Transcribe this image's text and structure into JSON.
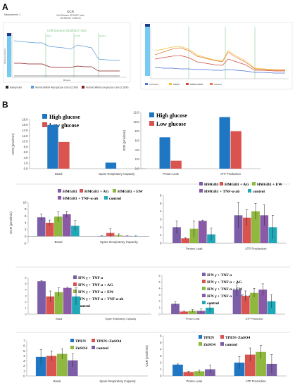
{
  "figure": {
    "label_a": "A",
    "label_b": "B"
  },
  "panel_a": {
    "header_measurement": "Measurement: 1",
    "header_title": "OCR",
    "header_sub1": "Cell Science 20190227 mito",
    "header_sub2": "2019/02/27 13:55:20",
    "inner_title": "Cell Science 20190227 mito",
    "xlabel": "Minutes",
    "ylabel": "OCR (pmol/min)",
    "injection_labels": [
      "Oligo",
      "FCCP",
      "Rot/AA"
    ],
    "legend": [
      {
        "name": "Background",
        "color": "#222222"
      },
      {
        "name": "Normal DMEM High glucose Cerio (C1900)",
        "color": "#5b9bd5"
      },
      {
        "name": "Normal DMEM Low glucose Cerio (C1900)",
        "color": "#8b1a1a"
      }
    ],
    "right_legend": [
      "Control+1d",
      "HMGB1",
      "DMEM+HMGB1",
      "control+d"
    ]
  },
  "colors": {
    "blue": "#1f77c4",
    "red": "#d9534f",
    "purple": "#7b5ea7",
    "green": "#8fb83e",
    "violet": "#8a5aa6",
    "teal": "#1fa9b8",
    "highlight": "#5fc2ee"
  },
  "chart_data": [
    {
      "id": "b1-left",
      "type": "bar",
      "categories": [
        "Basal",
        "Spare Respiratory Capacity"
      ],
      "series": [
        {
          "name": "High glucose",
          "values": [
            16.0,
            2.2
          ]
        },
        {
          "name": "Low glucose",
          "values": [
            9.8,
            0
          ]
        }
      ],
      "ylabel": "OCR (pmol/min)",
      "ylim": [
        0,
        18
      ],
      "ticks": [
        "0.0",
        "2.0",
        "4.0",
        "6.0",
        "8.0",
        "10.0",
        "12.0",
        "14.0",
        "16.0",
        "18.0"
      ]
    },
    {
      "id": "b1-right",
      "type": "bar",
      "categories": [
        "Proton Leak",
        "ATP Production"
      ],
      "series": [
        {
          "name": "High glucose",
          "values": [
            6.7,
            11.0
          ]
        },
        {
          "name": "Low glucose",
          "values": [
            1.7,
            8.0
          ]
        }
      ],
      "ylabel": "OCR (pmol/min)",
      "ylim": [
        0,
        12
      ],
      "ticks": [
        "0.0",
        "2.0",
        "4.0",
        "6.0",
        "8.0",
        "10.0",
        "12.0"
      ]
    },
    {
      "id": "b2-left",
      "type": "bar",
      "categories": [
        "Basal",
        "Spare Respiratory Capacity"
      ],
      "series": [
        {
          "name": "HMGB1",
          "values": [
            5.6,
            0.1
          ],
          "err": [
            0.9,
            0.1
          ]
        },
        {
          "name": "HMGB1 + AG",
          "values": [
            4.0,
            1.0
          ],
          "err": [
            0.8,
            1.2
          ]
        },
        {
          "name": "HMGB1 + EW",
          "values": [
            5.8,
            0.3
          ],
          "err": [
            1.5,
            0.4
          ]
        },
        {
          "name": "HMGB1 + TNF-α-ab",
          "values": [
            6.5,
            0.1
          ],
          "err": [
            0.9,
            0.1
          ]
        },
        {
          "name": "control",
          "values": [
            3.1,
            0.05
          ],
          "err": [
            1.6,
            0.1
          ]
        }
      ],
      "ylabel": "OCR (pmol/min)",
      "ylim": [
        -2,
        10
      ],
      "ticks": [
        "-2",
        "0",
        "2",
        "4",
        "6",
        "8",
        "10"
      ]
    },
    {
      "id": "b2-right",
      "type": "bar",
      "categories": [
        "Proton Leak",
        "ATP Production"
      ],
      "series": [
        {
          "name": "HMGB1",
          "values": [
            2.0,
            3.5
          ],
          "err": [
            0.8,
            1.6
          ]
        },
        {
          "name": "HMGB1 + AG",
          "values": [
            0.6,
            3.2
          ],
          "err": [
            0.1,
            1.0
          ]
        },
        {
          "name": "HMGB1 + EW",
          "values": [
            1.8,
            4.0
          ],
          "err": [
            1.0,
            1.0
          ]
        },
        {
          "name": "HMGB1 + TNF-α-ab",
          "values": [
            2.8,
            3.5
          ],
          "err": [
            0.1,
            1.3
          ]
        },
        {
          "name": "control",
          "values": [
            1.1,
            2.0
          ],
          "err": [
            0.8,
            1.5
          ]
        }
      ],
      "ylabel": "",
      "ylim": [
        0,
        6
      ],
      "ticks": [
        "0",
        "1",
        "2",
        "3",
        "4",
        "5",
        "6"
      ]
    },
    {
      "id": "b3-left",
      "type": "bar",
      "categories": [
        "Basal",
        "Spare Respiratory Capacity"
      ],
      "series": [
        {
          "name": "IFN γ + TNF α",
          "values": [
            5.4,
            0
          ],
          "err": [
            0.1,
            0
          ]
        },
        {
          "name": "IFN γ + TNF α + AG",
          "values": [
            2.9,
            0
          ],
          "err": [
            0.9,
            0
          ]
        },
        {
          "name": "IFN γ + TNF α + EW",
          "values": [
            3.6,
            0
          ],
          "err": [
            0.7,
            0
          ]
        },
        {
          "name": "IFN γ + TNF α + TNF α-ab",
          "values": [
            4.3,
            0
          ],
          "err": [
            0.1,
            0
          ]
        },
        {
          "name": "control",
          "values": [
            2.9,
            0
          ],
          "err": [
            1.4,
            0
          ]
        }
      ],
      "ylabel": "",
      "ylim": [
        0,
        6
      ],
      "ticks": [
        "0",
        "1",
        "2",
        "3",
        "4",
        "5",
        "6"
      ]
    },
    {
      "id": "b3-right",
      "type": "bar",
      "categories": [
        "Proton Leak",
        "ATP Production"
      ],
      "series": [
        {
          "name": "IFN γ + TNF α",
          "values": [
            1.6,
            3.8
          ],
          "err": [
            0.3,
            1.0
          ]
        },
        {
          "name": "IFN γ + TNF α + AG",
          "values": [
            0.4,
            2.8
          ],
          "err": [
            0.1,
            0.8
          ]
        },
        {
          "name": "IFN γ + TNF α + EW",
          "values": [
            0.5,
            3.3
          ],
          "err": [
            0.2,
            0.7
          ]
        },
        {
          "name": "IFN γ + TNF α + TNF α-ab",
          "values": [
            0.5,
            3.8
          ],
          "err": [
            0.3,
            0.9
          ]
        },
        {
          "name": "control",
          "values": [
            1.0,
            2.0
          ],
          "err": [
            0.6,
            1.0
          ]
        }
      ],
      "ylabel": "",
      "ylim": [
        0,
        6
      ],
      "ticks": [
        "0",
        "1",
        "2",
        "3",
        "4",
        "5",
        "6"
      ]
    },
    {
      "id": "b4-left",
      "type": "bar",
      "categories": [
        "Basal",
        "Spare Respiratory Capacity"
      ],
      "series": [
        {
          "name": "TPEN",
          "values": [
            3.8,
            0
          ],
          "err": [
            1.5,
            0
          ]
        },
        {
          "name": "TPEN+ZnSO4",
          "values": [
            4.0,
            0
          ],
          "err": [
            1.0,
            0
          ]
        },
        {
          "name": "ZnSO4",
          "values": [
            4.4,
            0
          ],
          "err": [
            1.0,
            0
          ]
        },
        {
          "name": "control",
          "values": [
            3.1,
            0
          ],
          "err": [
            1.3,
            0
          ]
        }
      ],
      "ylabel": "",
      "ylim": [
        0,
        7
      ],
      "ticks": [
        "0",
        "1",
        "2",
        "3",
        "4",
        "5",
        "6",
        "7"
      ]
    },
    {
      "id": "b4-right",
      "type": "bar",
      "categories": [
        "Proton Leak",
        "ATP Production"
      ],
      "series": [
        {
          "name": "TPEN",
          "values": [
            1.7,
            2.0
          ],
          "err": [
            0.1,
            0.9
          ]
        },
        {
          "name": "TPEN+ZnSO4",
          "values": [
            0.6,
            3.2
          ],
          "err": [
            0.1,
            1.0
          ]
        },
        {
          "name": "ZnSO4",
          "values": [
            0.7,
            3.6
          ],
          "err": [
            0.2,
            1.0
          ]
        },
        {
          "name": "control",
          "values": [
            1.0,
            1.8
          ],
          "err": [
            0.6,
            1.4
          ]
        }
      ],
      "ylabel": "OCR (pmol/min)",
      "ylim": [
        0,
        6
      ],
      "ticks": [
        "0",
        "1",
        "2",
        "3",
        "4",
        "5",
        "6"
      ]
    }
  ]
}
